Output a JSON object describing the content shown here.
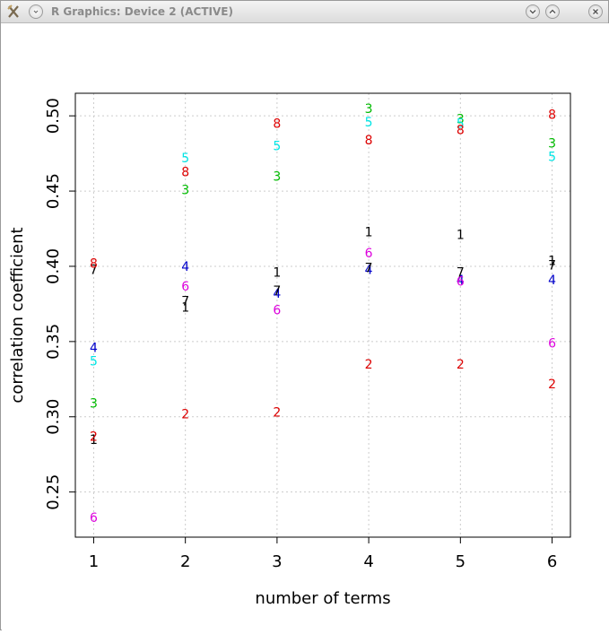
{
  "window": {
    "title": "R Graphics: Device 2 (ACTIVE)",
    "icons": [
      "app-icon",
      "menu-icon",
      "minimize-icon",
      "maximize-icon",
      "close-icon"
    ]
  },
  "colors": {
    "1": "#000000",
    "2": "#dd0000",
    "3": "#00bb00",
    "4": "#0000cc",
    "5": "#00e5e5",
    "6": "#dd00dd",
    "7": "#000000",
    "8": "#dd0000",
    "grid": "#cccccc",
    "axis": "#000000"
  },
  "chart_data": {
    "type": "scatter",
    "title": "",
    "xlabel": "number of terms",
    "ylabel": "correlation coefficient",
    "xlim": [
      0.8,
      6.2
    ],
    "ylim": [
      0.22,
      0.515
    ],
    "xticks": [
      1,
      2,
      3,
      4,
      5,
      6
    ],
    "yticks": [
      0.25,
      0.3,
      0.35,
      0.4,
      0.45,
      0.5
    ],
    "ytick_labels": [
      "0.25",
      "0.30",
      "0.35",
      "0.40",
      "0.45",
      "0.50"
    ],
    "grid": true,
    "series": [
      {
        "name": "1",
        "points": [
          [
            1,
            0.285
          ],
          [
            2,
            0.373
          ],
          [
            3,
            0.396
          ],
          [
            4,
            0.423
          ],
          [
            5,
            0.421
          ],
          [
            6,
            0.404
          ]
        ]
      },
      {
        "name": "2",
        "points": [
          [
            1,
            0.287
          ],
          [
            2,
            0.302
          ],
          [
            3,
            0.303
          ],
          [
            4,
            0.335
          ],
          [
            5,
            0.335
          ],
          [
            6,
            0.322
          ]
        ]
      },
      {
        "name": "3",
        "points": [
          [
            1,
            0.309
          ],
          [
            2,
            0.451
          ],
          [
            3,
            0.46
          ],
          [
            4,
            0.505
          ],
          [
            5,
            0.498
          ],
          [
            6,
            0.482
          ]
        ]
      },
      {
        "name": "4",
        "points": [
          [
            1,
            0.346
          ],
          [
            2,
            0.4
          ],
          [
            3,
            0.382
          ],
          [
            4,
            0.398
          ],
          [
            5,
            0.391
          ],
          [
            6,
            0.391
          ]
        ]
      },
      {
        "name": "5",
        "points": [
          [
            1,
            0.337
          ],
          [
            2,
            0.472
          ],
          [
            3,
            0.48
          ],
          [
            4,
            0.496
          ],
          [
            5,
            0.495
          ],
          [
            6,
            0.473
          ]
        ]
      },
      {
        "name": "6",
        "points": [
          [
            1,
            0.233
          ],
          [
            2,
            0.387
          ],
          [
            3,
            0.371
          ],
          [
            4,
            0.409
          ],
          [
            5,
            0.39
          ],
          [
            6,
            0.349
          ]
        ]
      },
      {
        "name": "7",
        "points": [
          [
            1,
            0.398
          ],
          [
            2,
            0.377
          ],
          [
            3,
            0.384
          ],
          [
            4,
            0.399
          ],
          [
            5,
            0.396
          ],
          [
            6,
            0.401
          ]
        ]
      },
      {
        "name": "8",
        "points": [
          [
            1,
            0.402
          ],
          [
            2,
            0.463
          ],
          [
            3,
            0.495
          ],
          [
            4,
            0.484
          ],
          [
            5,
            0.491
          ],
          [
            6,
            0.501
          ]
        ]
      }
    ]
  }
}
